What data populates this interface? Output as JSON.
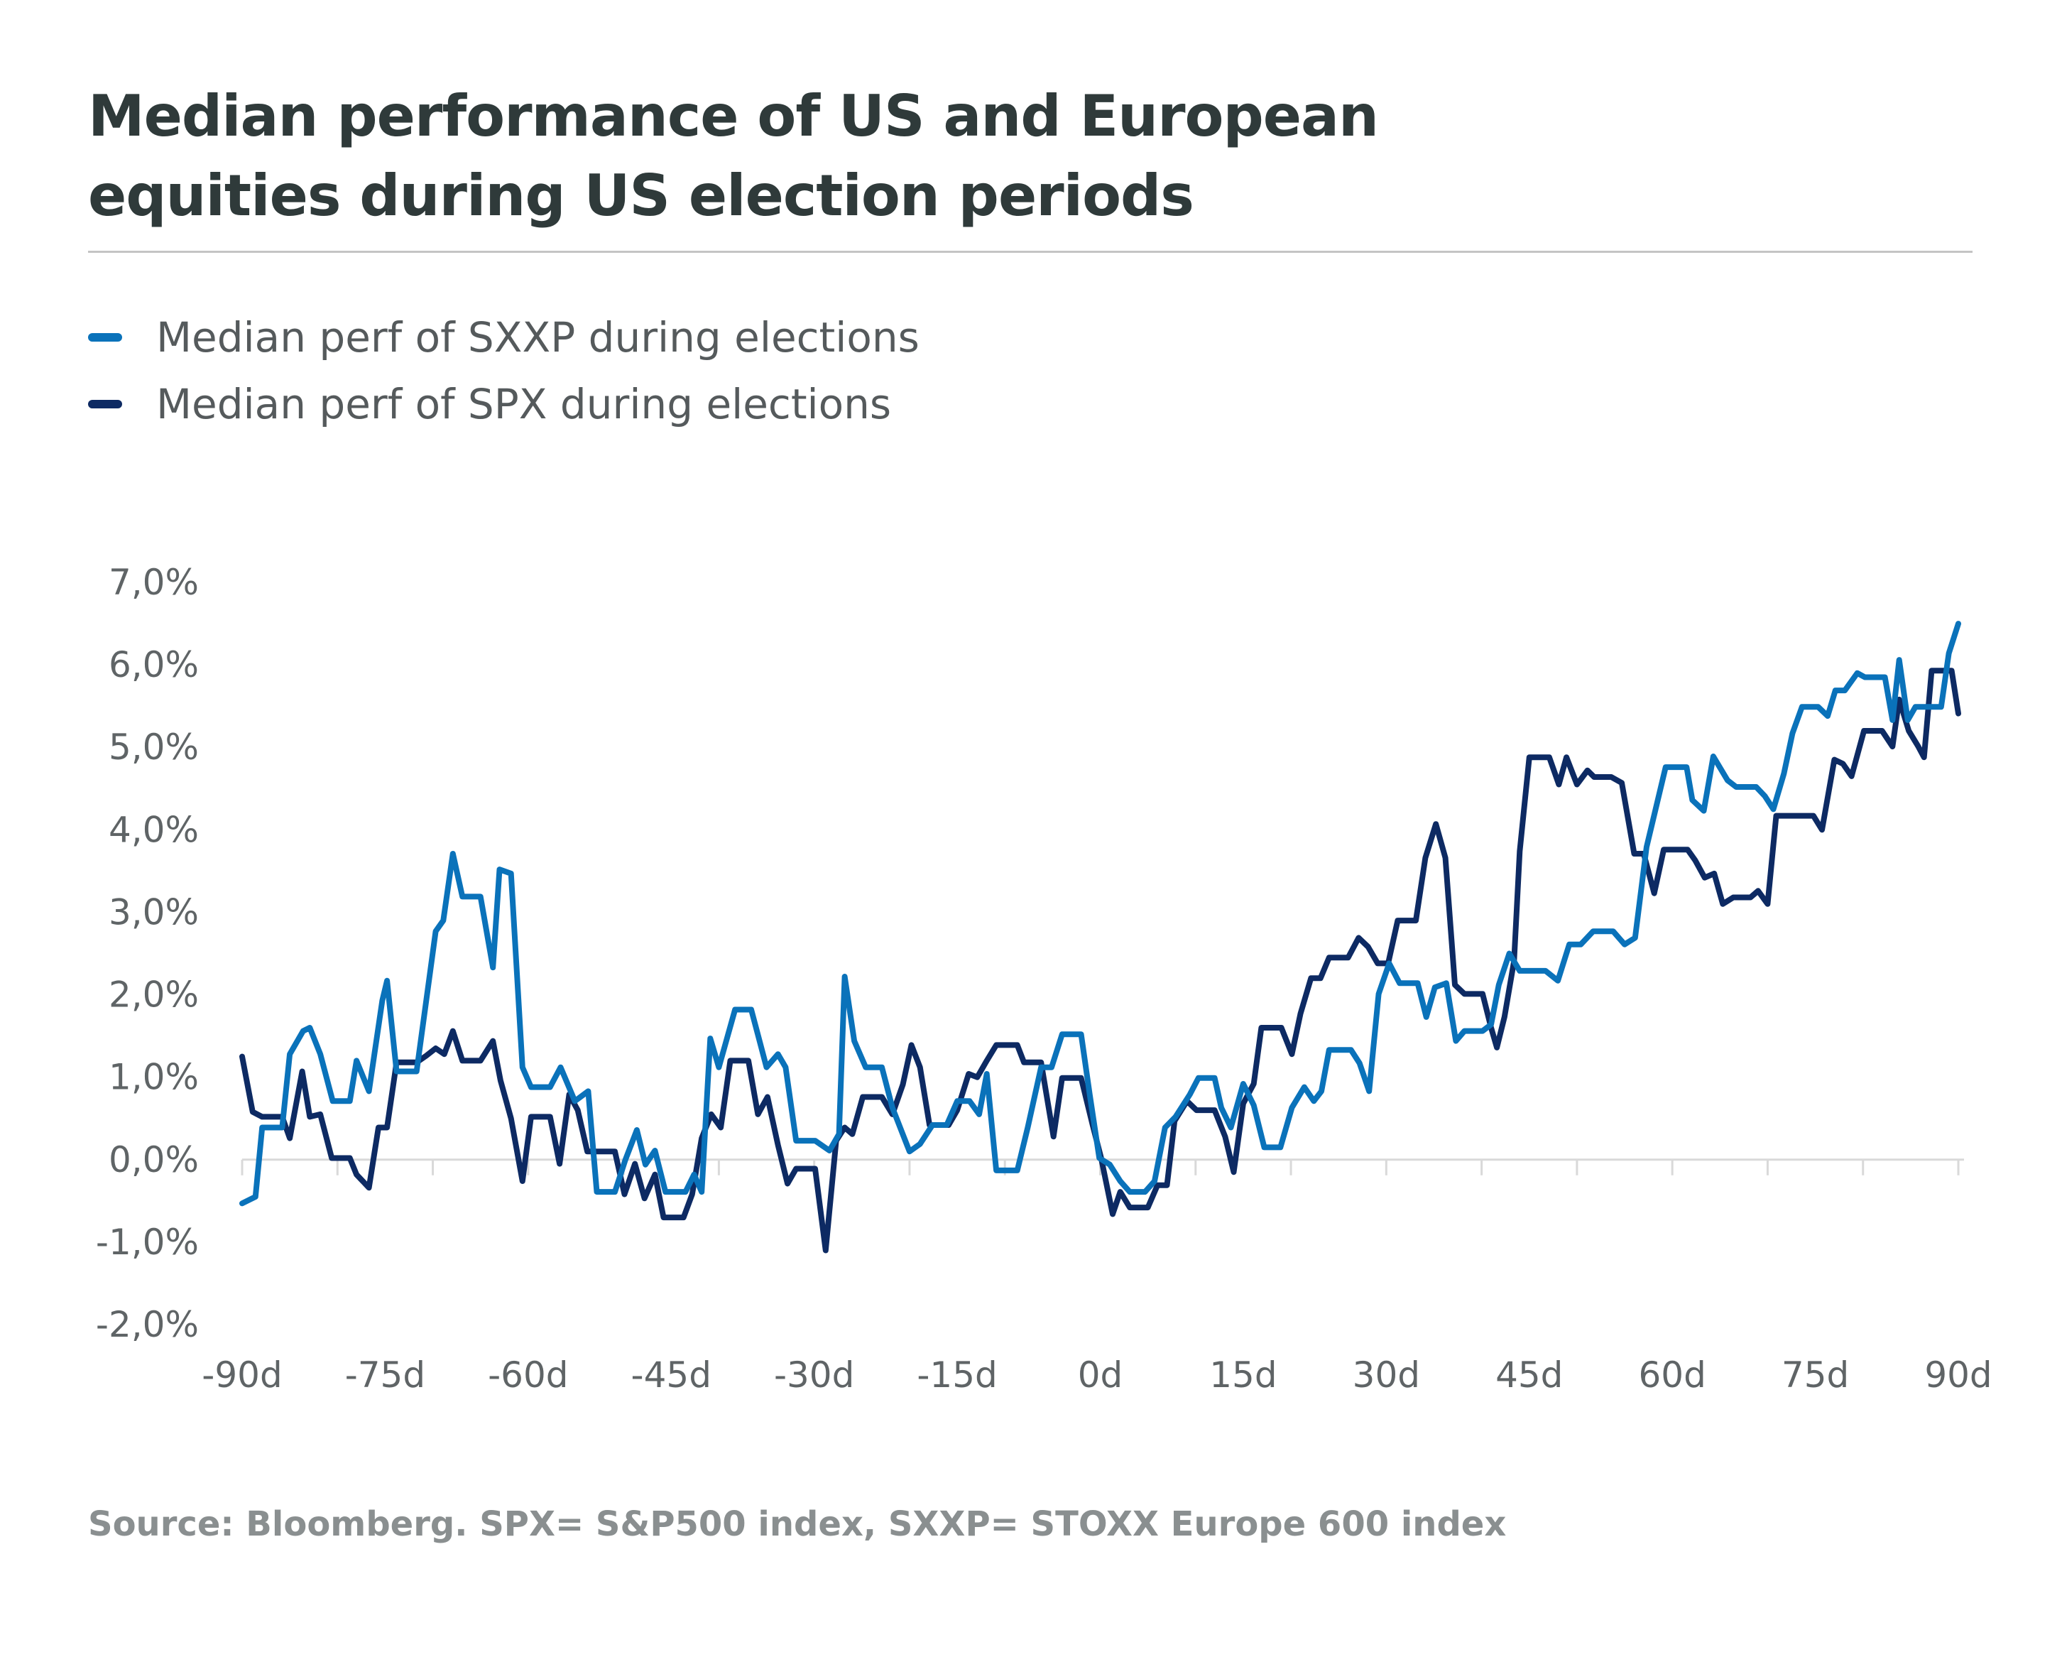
{
  "title_lines": [
    "Median performance of US and European",
    "equities  during US election periods"
  ],
  "source": "Source: Bloomberg. SPX= S&P500 index, SXXP= STOXX Europe 600 index",
  "colors": {
    "sxxp": "#0a72ba",
    "spx": "#0d2a63",
    "axis": "#d9d9d9",
    "divider": "#c4c4c4"
  },
  "legend": [
    {
      "label": "Median perf of SXXP during elections",
      "color": "#0a72ba"
    },
    {
      "label": "Median perf of SPX during elections",
      "color": "#0d2a63"
    }
  ],
  "chart_data": {
    "type": "line",
    "title": "Median performance of US and European equities during US election periods",
    "xlabel": "",
    "ylabel": "",
    "xlim": [
      -90,
      90
    ],
    "ylim": [
      -2.0,
      7.0
    ],
    "grid": false,
    "legend_position": "top-left",
    "y_ticks": [
      7,
      6,
      5,
      4,
      3,
      2,
      1,
      0,
      -1,
      -2
    ],
    "y_tick_labels": [
      "7,0%",
      "6,0%",
      "5,0%",
      "4,0%",
      "3,0%",
      "2,0%",
      "1,0%",
      "0,0%",
      "-1,0%",
      "-2,0%"
    ],
    "x_ticks": [
      -90,
      -75,
      -60,
      -45,
      -30,
      -15,
      0,
      15,
      30,
      45,
      60,
      75,
      90
    ],
    "x_tick_labels": [
      "-90d",
      "-75d",
      "-60d",
      "-45d",
      "-30d",
      "-15d",
      "0d",
      "15d",
      "30d",
      "45d",
      "60d",
      "75d",
      "90d"
    ],
    "series": [
      {
        "name": "Median perf of SXXP during elections",
        "color": "#0a72ba",
        "points": [
          [
            -90,
            -0.53
          ],
          [
            -88.6,
            -0.45
          ],
          [
            -87.9,
            0.39
          ],
          [
            -85.8,
            0.39
          ],
          [
            -85,
            1.28
          ],
          [
            -83.6,
            1.56
          ],
          [
            -82.9,
            1.6
          ],
          [
            -81.8,
            1.28
          ],
          [
            -80.5,
            0.71
          ],
          [
            -78.7,
            0.71
          ],
          [
            -78,
            1.2
          ],
          [
            -76.7,
            0.83
          ],
          [
            -75.3,
            1.93
          ],
          [
            -74.8,
            2.17
          ],
          [
            -73.8,
            1.07
          ],
          [
            -71.7,
            1.07
          ],
          [
            -69.7,
            2.77
          ],
          [
            -68.9,
            2.9
          ],
          [
            -67.9,
            3.71
          ],
          [
            -66.9,
            3.19
          ],
          [
            -65,
            3.19
          ],
          [
            -63.7,
            2.33
          ],
          [
            -63,
            3.52
          ],
          [
            -61.8,
            3.47
          ],
          [
            -60.6,
            1.12
          ],
          [
            -59.7,
            0.88
          ],
          [
            -57.7,
            0.88
          ],
          [
            -56.6,
            1.12
          ],
          [
            -55.1,
            0.71
          ],
          [
            -53.7,
            0.83
          ],
          [
            -52.8,
            -0.39
          ],
          [
            -50.9,
            -0.39
          ],
          [
            -49.8,
            0
          ],
          [
            -48.6,
            0.36
          ],
          [
            -47.7,
            -0.06
          ],
          [
            -46.7,
            0.11
          ],
          [
            -45.6,
            -0.39
          ],
          [
            -43.5,
            -0.39
          ],
          [
            -42.6,
            -0.18
          ],
          [
            -41.8,
            -0.39
          ],
          [
            -40.9,
            1.47
          ],
          [
            -40,
            1.12
          ],
          [
            -38.3,
            1.82
          ],
          [
            -36.6,
            1.82
          ],
          [
            -35.8,
            1.47
          ],
          [
            -35,
            1.12
          ],
          [
            -33.8,
            1.28
          ],
          [
            -33,
            1.12
          ],
          [
            -31.9,
            0.23
          ],
          [
            -29.9,
            0.23
          ],
          [
            -28.4,
            0.11
          ],
          [
            -27.4,
            0.31
          ],
          [
            -26.8,
            2.22
          ],
          [
            -25.8,
            1.44
          ],
          [
            -24.6,
            1.12
          ],
          [
            -22.9,
            1.12
          ],
          [
            -21.8,
            0.63
          ],
          [
            -20,
            0.1
          ],
          [
            -18.9,
            0.19
          ],
          [
            -17.6,
            0.42
          ],
          [
            -16.1,
            0.42
          ],
          [
            -15,
            0.71
          ],
          [
            -13.7,
            0.71
          ],
          [
            -12.7,
            0.55
          ],
          [
            -11.9,
            1.04
          ],
          [
            -10.9,
            -0.13
          ],
          [
            -8.7,
            -0.13
          ],
          [
            -7.6,
            0.39
          ],
          [
            -6.2,
            1.12
          ],
          [
            -5.1,
            1.12
          ],
          [
            -4,
            1.52
          ],
          [
            -2,
            1.52
          ],
          [
            -1.1,
            0.79
          ],
          [
            -0.1,
            0.02
          ],
          [
            1,
            -0.06
          ],
          [
            2.1,
            -0.26
          ],
          [
            3.1,
            -0.39
          ],
          [
            4.7,
            -0.39
          ],
          [
            5.7,
            -0.26
          ],
          [
            6.8,
            0.39
          ],
          [
            7.9,
            0.52
          ],
          [
            9.4,
            0.79
          ],
          [
            10.3,
            0.99
          ],
          [
            12,
            0.99
          ],
          [
            12.7,
            0.63
          ],
          [
            13.7,
            0.39
          ],
          [
            15,
            0.92
          ],
          [
            16.1,
            0.66
          ],
          [
            17.2,
            0.15
          ],
          [
            18.9,
            0.15
          ],
          [
            20.1,
            0.63
          ],
          [
            21.4,
            0.88
          ],
          [
            22.4,
            0.71
          ],
          [
            23.2,
            0.83
          ],
          [
            24,
            1.33
          ],
          [
            26.3,
            1.33
          ],
          [
            27.2,
            1.17
          ],
          [
            28.2,
            0.83
          ],
          [
            29.2,
            2.01
          ],
          [
            30.3,
            2.38
          ],
          [
            31.4,
            2.14
          ],
          [
            33.3,
            2.14
          ],
          [
            34.2,
            1.73
          ],
          [
            35.1,
            2.09
          ],
          [
            36.3,
            2.14
          ],
          [
            37.3,
            1.44
          ],
          [
            38.2,
            1.56
          ],
          [
            40.1,
            1.56
          ],
          [
            41,
            1.64
          ],
          [
            41.8,
            2.12
          ],
          [
            42.9,
            2.5
          ],
          [
            44,
            2.29
          ],
          [
            46.7,
            2.29
          ],
          [
            48,
            2.17
          ],
          [
            49.2,
            2.61
          ],
          [
            50.4,
            2.61
          ],
          [
            51.7,
            2.77
          ],
          [
            53.8,
            2.77
          ],
          [
            55,
            2.61
          ],
          [
            56.1,
            2.69
          ],
          [
            57.3,
            3.79
          ],
          [
            59.3,
            4.76
          ],
          [
            61.5,
            4.76
          ],
          [
            62.1,
            4.36
          ],
          [
            63.3,
            4.23
          ],
          [
            64.3,
            4.89
          ],
          [
            65.8,
            4.6
          ],
          [
            66.7,
            4.52
          ],
          [
            68.8,
            4.52
          ],
          [
            69.7,
            4.41
          ],
          [
            70.6,
            4.25
          ],
          [
            71.7,
            4.68
          ],
          [
            72.6,
            5.17
          ],
          [
            73.6,
            5.49
          ],
          [
            75.3,
            5.49
          ],
          [
            76.3,
            5.38
          ],
          [
            77.1,
            5.69
          ],
          [
            78.1,
            5.69
          ],
          [
            79.4,
            5.9
          ],
          [
            80.2,
            5.85
          ],
          [
            82.3,
            5.85
          ],
          [
            83.1,
            5.33
          ],
          [
            83.8,
            6.06
          ],
          [
            84.7,
            5.33
          ],
          [
            85.5,
            5.49
          ],
          [
            88.2,
            5.49
          ],
          [
            89,
            6.14
          ],
          [
            90,
            6.5
          ]
        ]
      },
      {
        "name": "Median perf of SPX during elections",
        "color": "#0d2a63",
        "points": [
          [
            -90,
            1.25
          ],
          [
            -88.9,
            0.58
          ],
          [
            -87.9,
            0.52
          ],
          [
            -85.8,
            0.52
          ],
          [
            -85,
            0.26
          ],
          [
            -83.7,
            1.07
          ],
          [
            -82.9,
            0.52
          ],
          [
            -81.8,
            0.55
          ],
          [
            -80.6,
            0.02
          ],
          [
            -78.7,
            0.02
          ],
          [
            -78,
            -0.18
          ],
          [
            -76.7,
            -0.34
          ],
          [
            -75.7,
            0.39
          ],
          [
            -74.8,
            0.39
          ],
          [
            -73.8,
            1.18
          ],
          [
            -71.7,
            1.18
          ],
          [
            -70.7,
            1.26
          ],
          [
            -69.7,
            1.35
          ],
          [
            -68.8,
            1.28
          ],
          [
            -67.9,
            1.56
          ],
          [
            -66.9,
            1.2
          ],
          [
            -65,
            1.2
          ],
          [
            -63.7,
            1.44
          ],
          [
            -62.9,
            0.96
          ],
          [
            -61.8,
            0.5
          ],
          [
            -60.6,
            -0.26
          ],
          [
            -59.7,
            0.52
          ],
          [
            -57.7,
            0.52
          ],
          [
            -56.7,
            -0.05
          ],
          [
            -55.7,
            0.79
          ],
          [
            -54.8,
            0.6
          ],
          [
            -53.8,
            0.1
          ],
          [
            -50.9,
            0.1
          ],
          [
            -49.9,
            -0.42
          ],
          [
            -48.8,
            -0.05
          ],
          [
            -47.8,
            -0.47
          ],
          [
            -46.7,
            -0.18
          ],
          [
            -45.8,
            -0.7
          ],
          [
            -43.7,
            -0.7
          ],
          [
            -42.8,
            -0.42
          ],
          [
            -41.8,
            0.26
          ],
          [
            -40.8,
            0.55
          ],
          [
            -39.8,
            0.39
          ],
          [
            -38.8,
            1.2
          ],
          [
            -36.9,
            1.2
          ],
          [
            -35.9,
            0.55
          ],
          [
            -34.9,
            0.76
          ],
          [
            -33.8,
            0.18
          ],
          [
            -32.8,
            -0.29
          ],
          [
            -31.9,
            -0.11
          ],
          [
            -29.9,
            -0.11
          ],
          [
            -28.8,
            -1.1
          ],
          [
            -27.7,
            0.23
          ],
          [
            -26.8,
            0.39
          ],
          [
            -26,
            0.31
          ],
          [
            -24.9,
            0.76
          ],
          [
            -22.9,
            0.76
          ],
          [
            -21.8,
            0.55
          ],
          [
            -20.7,
            0.91
          ],
          [
            -19.8,
            1.39
          ],
          [
            -18.9,
            1.12
          ],
          [
            -17.9,
            0.42
          ],
          [
            -15.9,
            0.42
          ],
          [
            -15,
            0.6
          ],
          [
            -13.8,
            1.04
          ],
          [
            -12.9,
            1
          ],
          [
            -11.9,
            1.2
          ],
          [
            -10.9,
            1.39
          ],
          [
            -8.7,
            1.39
          ],
          [
            -8,
            1.18
          ],
          [
            -6.2,
            1.18
          ],
          [
            -4.9,
            0.28
          ],
          [
            -4,
            0.99
          ],
          [
            -2,
            0.99
          ],
          [
            -0.8,
            0.42
          ],
          [
            0.1,
            0.02
          ],
          [
            1.3,
            -0.66
          ],
          [
            2.1,
            -0.39
          ],
          [
            3.1,
            -0.58
          ],
          [
            5,
            -0.58
          ],
          [
            6,
            -0.31
          ],
          [
            7,
            -0.31
          ],
          [
            7.8,
            0.47
          ],
          [
            9.1,
            0.71
          ],
          [
            10.1,
            0.6
          ],
          [
            12,
            0.6
          ],
          [
            13.1,
            0.28
          ],
          [
            14,
            -0.15
          ],
          [
            15,
            0.68
          ],
          [
            16.1,
            0.92
          ],
          [
            16.9,
            1.6
          ],
          [
            19,
            1.6
          ],
          [
            20.1,
            1.28
          ],
          [
            21,
            1.77
          ],
          [
            22.1,
            2.2
          ],
          [
            23.1,
            2.2
          ],
          [
            24,
            2.45
          ],
          [
            26,
            2.45
          ],
          [
            27.1,
            2.69
          ],
          [
            28.1,
            2.58
          ],
          [
            29.1,
            2.38
          ],
          [
            30.2,
            2.38
          ],
          [
            31.2,
            2.9
          ],
          [
            33.1,
            2.9
          ],
          [
            34.1,
            3.66
          ],
          [
            35.2,
            4.07
          ],
          [
            36.2,
            3.66
          ],
          [
            37.2,
            2.12
          ],
          [
            38.2,
            2.01
          ],
          [
            40.1,
            2.01
          ],
          [
            41,
            1.6
          ],
          [
            41.6,
            1.36
          ],
          [
            42.4,
            1.73
          ],
          [
            43.4,
            2.41
          ],
          [
            44,
            3.74
          ],
          [
            45,
            4.88
          ],
          [
            47.1,
            4.88
          ],
          [
            48.1,
            4.55
          ],
          [
            48.9,
            4.88
          ],
          [
            50,
            4.55
          ],
          [
            51.1,
            4.72
          ],
          [
            51.8,
            4.64
          ],
          [
            53.6,
            4.64
          ],
          [
            54.7,
            4.57
          ],
          [
            56,
            3.71
          ],
          [
            57,
            3.71
          ],
          [
            58.1,
            3.23
          ],
          [
            59.1,
            3.76
          ],
          [
            61.6,
            3.76
          ],
          [
            62.4,
            3.63
          ],
          [
            63.4,
            3.42
          ],
          [
            64.4,
            3.47
          ],
          [
            65.3,
            3.1
          ],
          [
            66.4,
            3.18
          ],
          [
            68.2,
            3.18
          ],
          [
            69,
            3.26
          ],
          [
            70,
            3.1
          ],
          [
            70.9,
            4.17
          ],
          [
            74.8,
            4.17
          ],
          [
            75.7,
            4.0
          ],
          [
            77,
            4.85
          ],
          [
            77.9,
            4.8
          ],
          [
            78.8,
            4.65
          ],
          [
            80.1,
            5.2
          ],
          [
            82,
            5.2
          ],
          [
            83.1,
            5.01
          ],
          [
            83.8,
            5.58
          ],
          [
            84.8,
            5.2
          ],
          [
            85.8,
            5.01
          ],
          [
            86.4,
            4.88
          ],
          [
            87.2,
            5.93
          ],
          [
            89.3,
            5.93
          ],
          [
            90,
            5.41
          ]
        ]
      }
    ]
  }
}
